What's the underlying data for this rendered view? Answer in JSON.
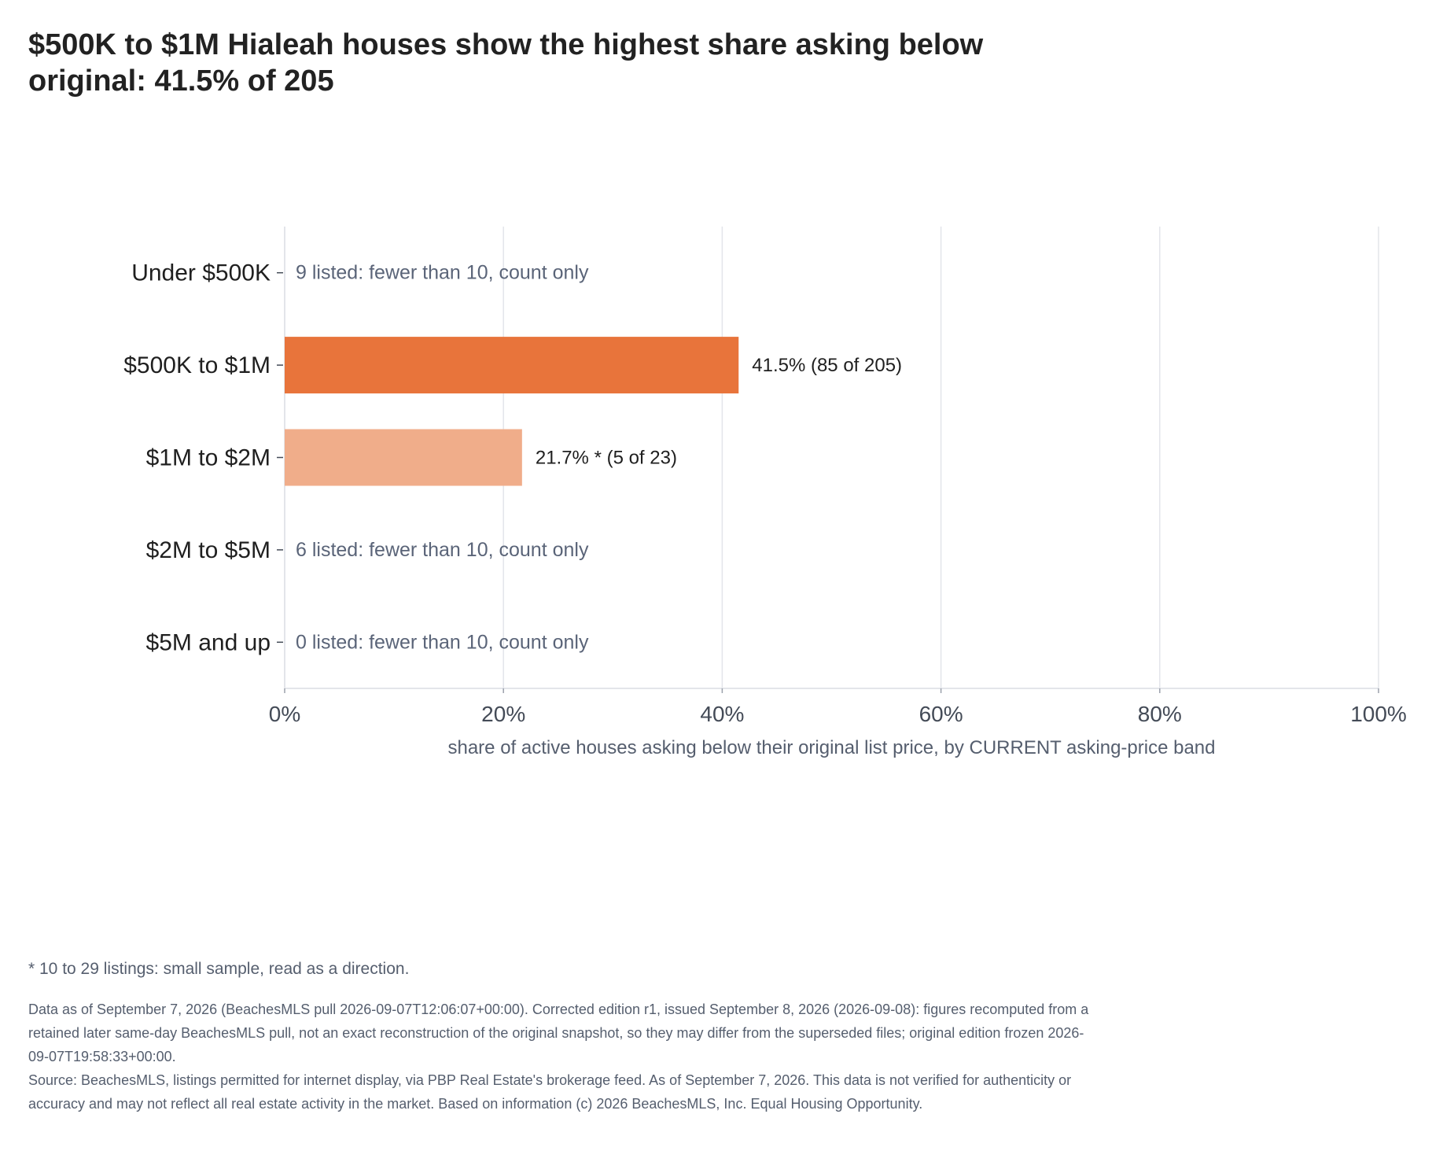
{
  "chart_data": {
    "type": "bar",
    "orientation": "horizontal",
    "title": "$500K to $1M Hialeah houses show the highest share asking below original: 41.5% of 205",
    "xlabel": "share of active houses asking below their original list price, by CURRENT asking-price band",
    "ylabel": "",
    "xlim": [
      0,
      100
    ],
    "xticks": [
      {
        "value": 0,
        "label": "0%"
      },
      {
        "value": 20,
        "label": "20%"
      },
      {
        "value": 40,
        "label": "40%"
      },
      {
        "value": 60,
        "label": "60%"
      },
      {
        "value": 80,
        "label": "80%"
      },
      {
        "value": 100,
        "label": "100%"
      }
    ],
    "grid": "vertical",
    "bars": [
      {
        "category": "Under $500K",
        "value": null,
        "label": "9 listed: fewer than 10, count only",
        "color": ""
      },
      {
        "category": "$500K to $1M",
        "value": 41.5,
        "label": "41.5%  (85 of 205)",
        "color": "#e8743b"
      },
      {
        "category": "$1M to $2M",
        "value": 21.7,
        "label": "21.7% *  (5 of 23)",
        "color": "#f0ad8a"
      },
      {
        "category": "$2M to $5M",
        "value": null,
        "label": "6 listed: fewer than 10, count only",
        "color": ""
      },
      {
        "category": "$5M and up",
        "value": null,
        "label": "0 listed: fewer than 10, count only",
        "color": ""
      }
    ],
    "colors": {
      "primary": "#e8743b",
      "small_sample": "#f0ad8a",
      "count_only_text": "#5a6478",
      "grid": "#e3e5ea"
    }
  },
  "footnote": "* 10 to 29 listings: small sample, read as a direction.",
  "notes": [
    "Data as of September 7, 2026 (BeachesMLS pull 2026-09-07T12:06:07+00:00). Corrected edition r1, issued September 8, 2026 (2026-09-08): figures recomputed from a retained later same-day BeachesMLS pull, not an exact reconstruction of the original snapshot, so they may differ from the superseded files; original edition frozen 2026-09-07T19:58:33+00:00.",
    "Source: BeachesMLS, listings permitted for internet display, via PBP Real Estate's brokerage feed. As of September 7, 2026. This data is not verified for authenticity or accuracy and may not reflect all real estate activity in the market. Based on information (c) 2026 BeachesMLS, Inc. Equal Housing Opportunity."
  ]
}
